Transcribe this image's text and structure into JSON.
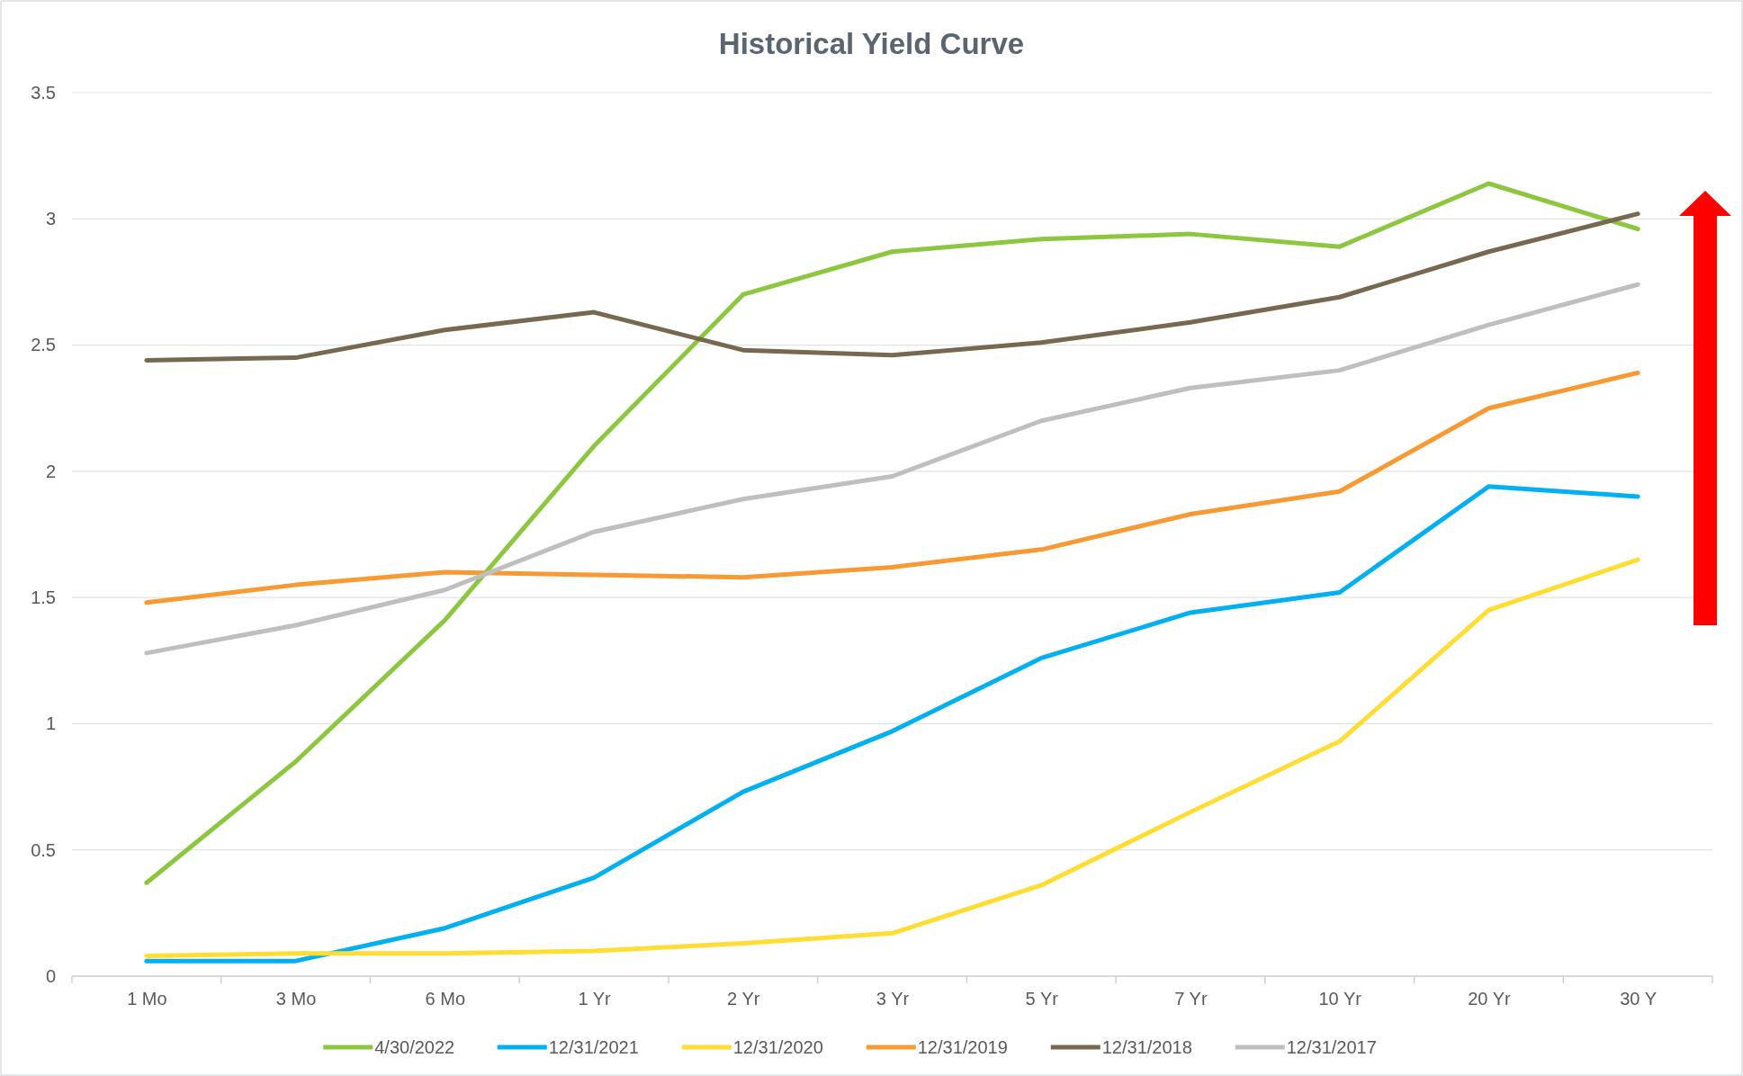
{
  "chart_data": {
    "type": "line",
    "title": "Historical Yield Curve",
    "categories": [
      "1 Mo",
      "3 Mo",
      "6 Mo",
      "1 Yr",
      "2 Yr",
      "3 Yr",
      "5 Yr",
      "7 Yr",
      "10 Yr",
      "20 Yr",
      "30 Y"
    ],
    "series": [
      {
        "name": "4/30/2022",
        "color": "#8dc63f",
        "values": [
          0.37,
          0.85,
          1.41,
          2.1,
          2.7,
          2.87,
          2.92,
          2.94,
          2.89,
          3.14,
          2.96
        ]
      },
      {
        "name": "12/31/2021",
        "color": "#00b0f0",
        "values": [
          0.06,
          0.06,
          0.19,
          0.39,
          0.73,
          0.97,
          1.26,
          1.44,
          1.52,
          1.94,
          1.9
        ]
      },
      {
        "name": "12/31/2020",
        "color": "#ffdd33",
        "values": [
          0.08,
          0.09,
          0.09,
          0.1,
          0.13,
          0.17,
          0.36,
          0.65,
          0.93,
          1.45,
          1.65
        ]
      },
      {
        "name": "12/31/2019",
        "color": "#f79a33",
        "values": [
          1.48,
          1.55,
          1.6,
          1.59,
          1.58,
          1.62,
          1.69,
          1.83,
          1.92,
          2.25,
          2.39
        ]
      },
      {
        "name": "12/31/2018",
        "color": "#76694f",
        "values": [
          2.44,
          2.45,
          2.56,
          2.63,
          2.48,
          2.46,
          2.51,
          2.59,
          2.69,
          2.87,
          3.02
        ]
      },
      {
        "name": "12/31/2017",
        "color": "#bfbfbf",
        "values": [
          1.28,
          1.39,
          1.53,
          1.76,
          1.89,
          1.98,
          2.2,
          2.33,
          2.4,
          2.58,
          2.74
        ]
      }
    ],
    "ylim": [
      0,
      3.5
    ],
    "yticks": [
      0,
      0.5,
      1,
      1.5,
      2,
      2.5,
      3,
      3.5
    ],
    "grid": "y",
    "legend": "bottom",
    "marker": "none",
    "line_style": "solid"
  }
}
